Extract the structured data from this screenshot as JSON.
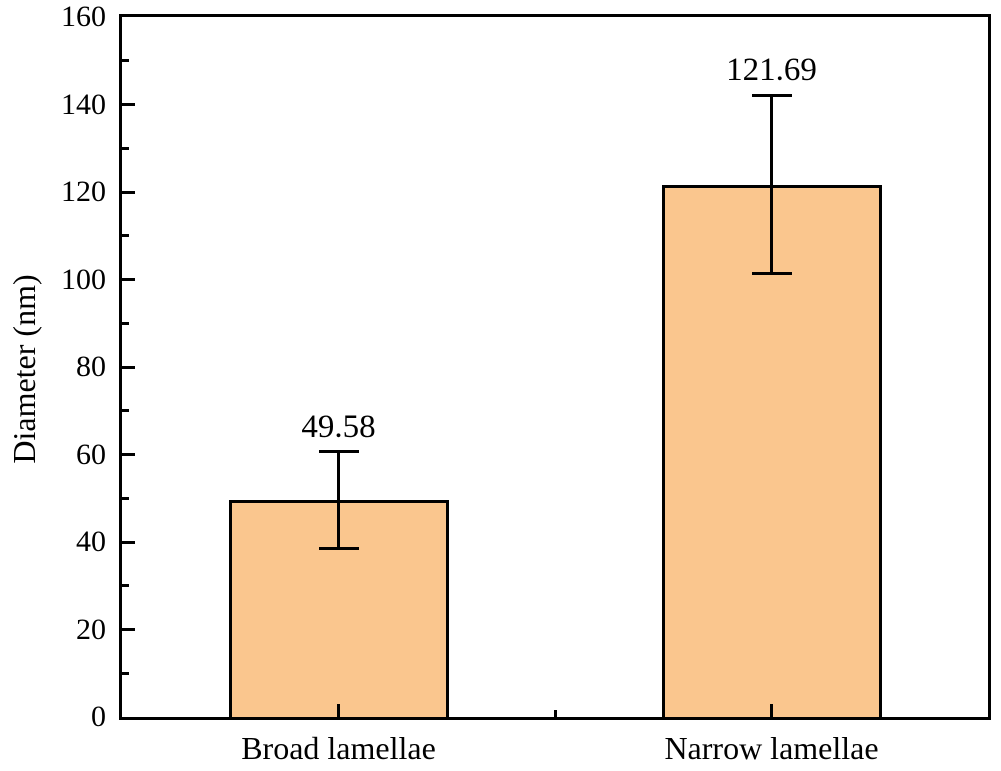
{
  "chart_data": {
    "type": "bar",
    "title": "",
    "ylabel": "Diameter (nm)",
    "xlabel": "",
    "categories": [
      "Broad lamellae",
      "Narrow lamellae"
    ],
    "values": [
      49.58,
      121.69
    ],
    "value_labels": [
      "49.58",
      "121.69"
    ],
    "errors": [
      11.0,
      20.4
    ],
    "ylim": [
      0,
      160
    ],
    "ytick_major_step": 20,
    "ytick_minor_step": 10,
    "ytick_labels": [
      "0",
      "20",
      "40",
      "60",
      "80",
      "100",
      "120",
      "140",
      "160"
    ],
    "grid": false,
    "legend": false,
    "bar_fill_color": "#FAC68E",
    "bar_edge_color": "#000000",
    "error_bar_color": "#000000",
    "axis_color": "#000000",
    "text_color": "#000000",
    "background_color": "#FFFFFF"
  }
}
